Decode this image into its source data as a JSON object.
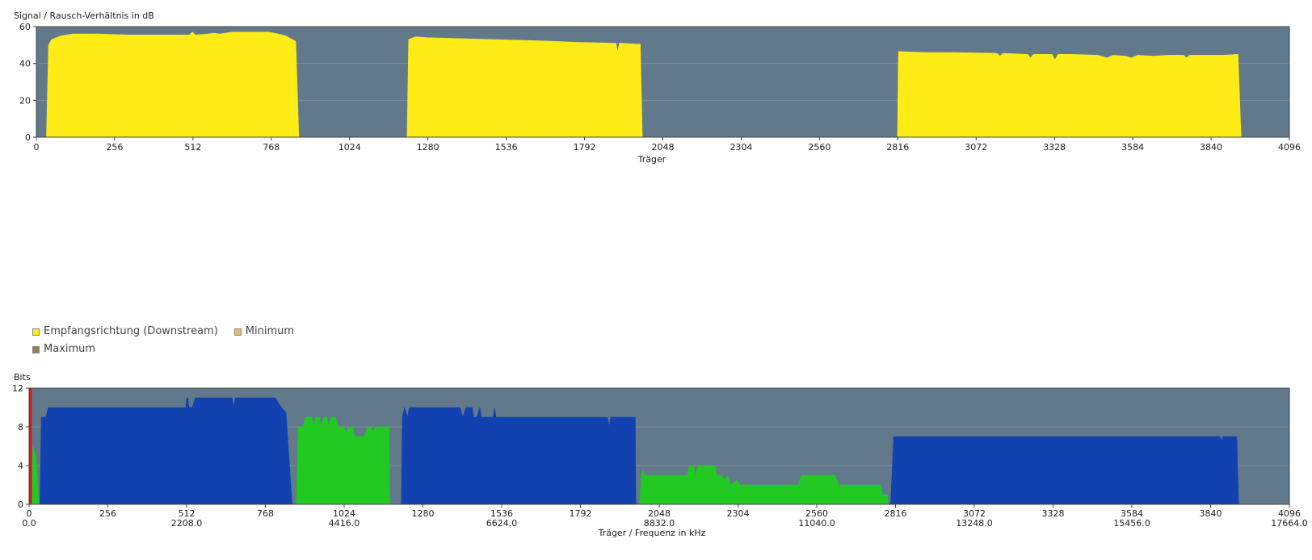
{
  "chart_data": [
    {
      "type": "area",
      "title": "Signal / Rausch-Verhältnis in dB",
      "xlabel": "Träger",
      "ylabel": "",
      "xlim": [
        0,
        4096
      ],
      "ylim": [
        0,
        60
      ],
      "x_ticks": [
        0,
        256,
        512,
        768,
        1024,
        1280,
        1536,
        1792,
        2048,
        2304,
        2560,
        2816,
        3072,
        3328,
        3584,
        3840,
        4096
      ],
      "y_ticks": [
        0,
        20,
        40,
        60
      ],
      "grid": true,
      "series": [
        {
          "color": "#ffeb16",
          "segments": [
            [
              [
                33,
                0
              ],
              [
                40,
                50
              ],
              [
                50,
                53
              ],
              [
                80,
                55
              ],
              [
                120,
                56
              ],
              [
                200,
                56
              ],
              [
                300,
                55.5
              ],
              [
                400,
                55.5
              ],
              [
                500,
                55.5
              ],
              [
                510,
                57
              ],
              [
                520,
                55.5
              ],
              [
                560,
                56
              ],
              [
                580,
                56.5
              ],
              [
                600,
                56
              ],
              [
                640,
                57
              ],
              [
                700,
                57
              ],
              [
                760,
                57
              ],
              [
                790,
                56
              ],
              [
                815,
                55
              ],
              [
                848,
                52
              ],
              [
                858,
                0
              ]
            ],
            [
              [
                1212,
                0
              ],
              [
                1217,
                53
              ],
              [
                1240,
                54.5
              ],
              [
                1280,
                54
              ],
              [
                1380,
                53.5
              ],
              [
                1500,
                53
              ],
              [
                1600,
                52.5
              ],
              [
                1700,
                52
              ],
              [
                1760,
                51.5
              ],
              [
                1895,
                51
              ],
              [
                1900,
                46
              ],
              [
                1906,
                51
              ],
              [
                1960,
                50.5
              ],
              [
                1974,
                50.5
              ],
              [
                1981,
                0
              ]
            ],
            [
              [
                2815,
                0
              ],
              [
                2818,
                46.5
              ],
              [
                2900,
                46
              ],
              [
                3000,
                46
              ],
              [
                3140,
                45.5
              ],
              [
                3150,
                44
              ],
              [
                3160,
                45.5
              ],
              [
                3240,
                45
              ],
              [
                3250,
                43
              ],
              [
                3260,
                45
              ],
              [
                3320,
                45
              ],
              [
                3330,
                42
              ],
              [
                3340,
                45
              ],
              [
                3380,
                45
              ],
              [
                3470,
                44.5
              ],
              [
                3500,
                43
              ],
              [
                3520,
                44.5
              ],
              [
                3560,
                44
              ],
              [
                3580,
                43
              ],
              [
                3600,
                44.5
              ],
              [
                3650,
                44
              ],
              [
                3700,
                44.5
              ],
              [
                3750,
                44.5
              ],
              [
                3760,
                43
              ],
              [
                3770,
                44.5
              ],
              [
                3880,
                44.5
              ],
              [
                3928,
                45
              ],
              [
                3938,
                0
              ]
            ]
          ]
        }
      ]
    },
    {
      "type": "area",
      "title": "Bits",
      "xlabel": "Träger / Frequenz in kHz",
      "ylabel": "",
      "xlim": [
        0,
        4096
      ],
      "ylim": [
        0,
        12
      ],
      "x_ticks": [
        0,
        256,
        512,
        768,
        1024,
        1280,
        1536,
        1792,
        2048,
        2304,
        2560,
        2816,
        3072,
        3328,
        3584,
        3840,
        4096
      ],
      "x_ticks_secondary": [
        {
          "x": 0,
          "label": "0.0"
        },
        {
          "x": 512,
          "label": "2208.0"
        },
        {
          "x": 1024,
          "label": "4416.0"
        },
        {
          "x": 1536,
          "label": "6624.0"
        },
        {
          "x": 2048,
          "label": "8832.0"
        },
        {
          "x": 2560,
          "label": "11040.0"
        },
        {
          "x": 3072,
          "label": "13248.0"
        },
        {
          "x": 3584,
          "label": "15456.0"
        },
        {
          "x": 4096,
          "label": "17664.0"
        }
      ],
      "y_ticks": [
        0,
        4,
        8,
        12
      ],
      "grid": true,
      "series": [
        {
          "color": "#d41616",
          "segments": [
            [
              [
                0,
                0
              ],
              [
                0,
                12
              ],
              [
                8,
                12
              ],
              [
                8,
                0
              ]
            ]
          ]
        },
        {
          "color": "#22c922",
          "segments": [
            [
              [
                10,
                0
              ],
              [
                12,
                6
              ],
              [
                22,
                5
              ],
              [
                32,
                0
              ]
            ],
            [
              [
                868,
                0
              ],
              [
                875,
                8
              ],
              [
                890,
                8
              ],
              [
                898,
                9
              ],
              [
                920,
                9
              ],
              [
                925,
                8
              ],
              [
                932,
                9
              ],
              [
                944,
                9
              ],
              [
                950,
                8
              ],
              [
                958,
                9
              ],
              [
                968,
                9
              ],
              [
                972,
                8
              ],
              [
                980,
                9
              ],
              [
                996,
                9
              ],
              [
                1006,
                8
              ],
              [
                1020,
                8
              ],
              [
                1030,
                7.5
              ],
              [
                1040,
                8
              ],
              [
                1052,
                8
              ],
              [
                1058,
                7
              ],
              [
                1090,
                7
              ],
              [
                1100,
                8
              ],
              [
                1110,
                8
              ],
              [
                1118,
                7.5
              ],
              [
                1125,
                8
              ],
              [
                1170,
                8
              ],
              [
                1172,
                0
              ]
            ],
            [
              [
                1984,
                0
              ],
              [
                1990,
                3
              ],
              [
                1995,
                3.5
              ],
              [
                2000,
                3
              ],
              [
                2080,
                3
              ],
              [
                2140,
                3
              ],
              [
                2145,
                4
              ],
              [
                2160,
                4
              ],
              [
                2165,
                3
              ],
              [
                2175,
                4
              ],
              [
                2230,
                4
              ],
              [
                2235,
                3
              ],
              [
                2250,
                3
              ],
              [
                2260,
                2.5
              ],
              [
                2270,
                3
              ],
              [
                2280,
                2
              ],
              [
                2300,
                2.5
              ],
              [
                2310,
                2
              ],
              [
                2500,
                2
              ],
              [
                2510,
                3
              ],
              [
                2620,
                3
              ],
              [
                2630,
                2
              ],
              [
                2768,
                2
              ],
              [
                2772,
                1
              ],
              [
                2790,
                1
              ],
              [
                2793,
                0
              ]
            ]
          ]
        },
        {
          "color": "#1242b0",
          "segments": [
            [
              [
                35,
                0
              ],
              [
                40,
                9
              ],
              [
                55,
                9
              ],
              [
                62,
                10
              ],
              [
                130,
                10
              ],
              [
                250,
                10
              ],
              [
                400,
                10
              ],
              [
                505,
                10
              ],
              [
                510,
                10
              ],
              [
                512,
                11
              ],
              [
                516,
                11
              ],
              [
                520,
                10
              ],
              [
                530,
                10
              ],
              [
                540,
                11
              ],
              [
                580,
                11
              ],
              [
                640,
                11
              ],
              [
                660,
                11
              ],
              [
                665,
                10
              ],
              [
                670,
                11
              ],
              [
                750,
                11
              ],
              [
                800,
                11
              ],
              [
                820,
                10
              ],
              [
                835,
                9.5
              ],
              [
                855,
                0
              ]
            ],
            [
              [
                1210,
                0
              ],
              [
                1213,
                9
              ],
              [
                1220,
                10
              ],
              [
                1230,
                9
              ],
              [
                1236,
                10
              ],
              [
                1265,
                10
              ],
              [
                1300,
                10
              ],
              [
                1330,
                10
              ],
              [
                1400,
                10
              ],
              [
                1410,
                9
              ],
              [
                1420,
                10
              ],
              [
                1440,
                10
              ],
              [
                1445,
                9
              ],
              [
                1455,
                9
              ],
              [
                1465,
                10
              ],
              [
                1470,
                9
              ],
              [
                1508,
                9
              ],
              [
                1512,
                10
              ],
              [
                1518,
                9
              ],
              [
                1700,
                9
              ],
              [
                1800,
                9
              ],
              [
                1880,
                9
              ],
              [
                1885,
                8
              ],
              [
                1890,
                9
              ],
              [
                1970,
                9
              ],
              [
                1972,
                0
              ]
            ],
            [
              [
                2800,
                0
              ],
              [
                2810,
                7
              ],
              [
                3000,
                7
              ],
              [
                3200,
                7
              ],
              [
                3400,
                7
              ],
              [
                3600,
                7
              ],
              [
                3800,
                7
              ],
              [
                3870,
                7
              ],
              [
                3875,
                6.5
              ],
              [
                3880,
                7
              ],
              [
                3925,
                7
              ],
              [
                3931,
                0
              ]
            ]
          ]
        }
      ]
    }
  ],
  "legend": {
    "items": [
      {
        "label": "Empfangsrichtung (Downstream)",
        "color": "#ffeb16"
      },
      {
        "label": "Minimum",
        "color": "#e8b86a"
      },
      {
        "label": "Maximum",
        "color": "#9b7b56"
      }
    ]
  },
  "colors": {
    "plot_background": "#62798c",
    "grid": "#7a8fa0",
    "axis": "#333333"
  }
}
